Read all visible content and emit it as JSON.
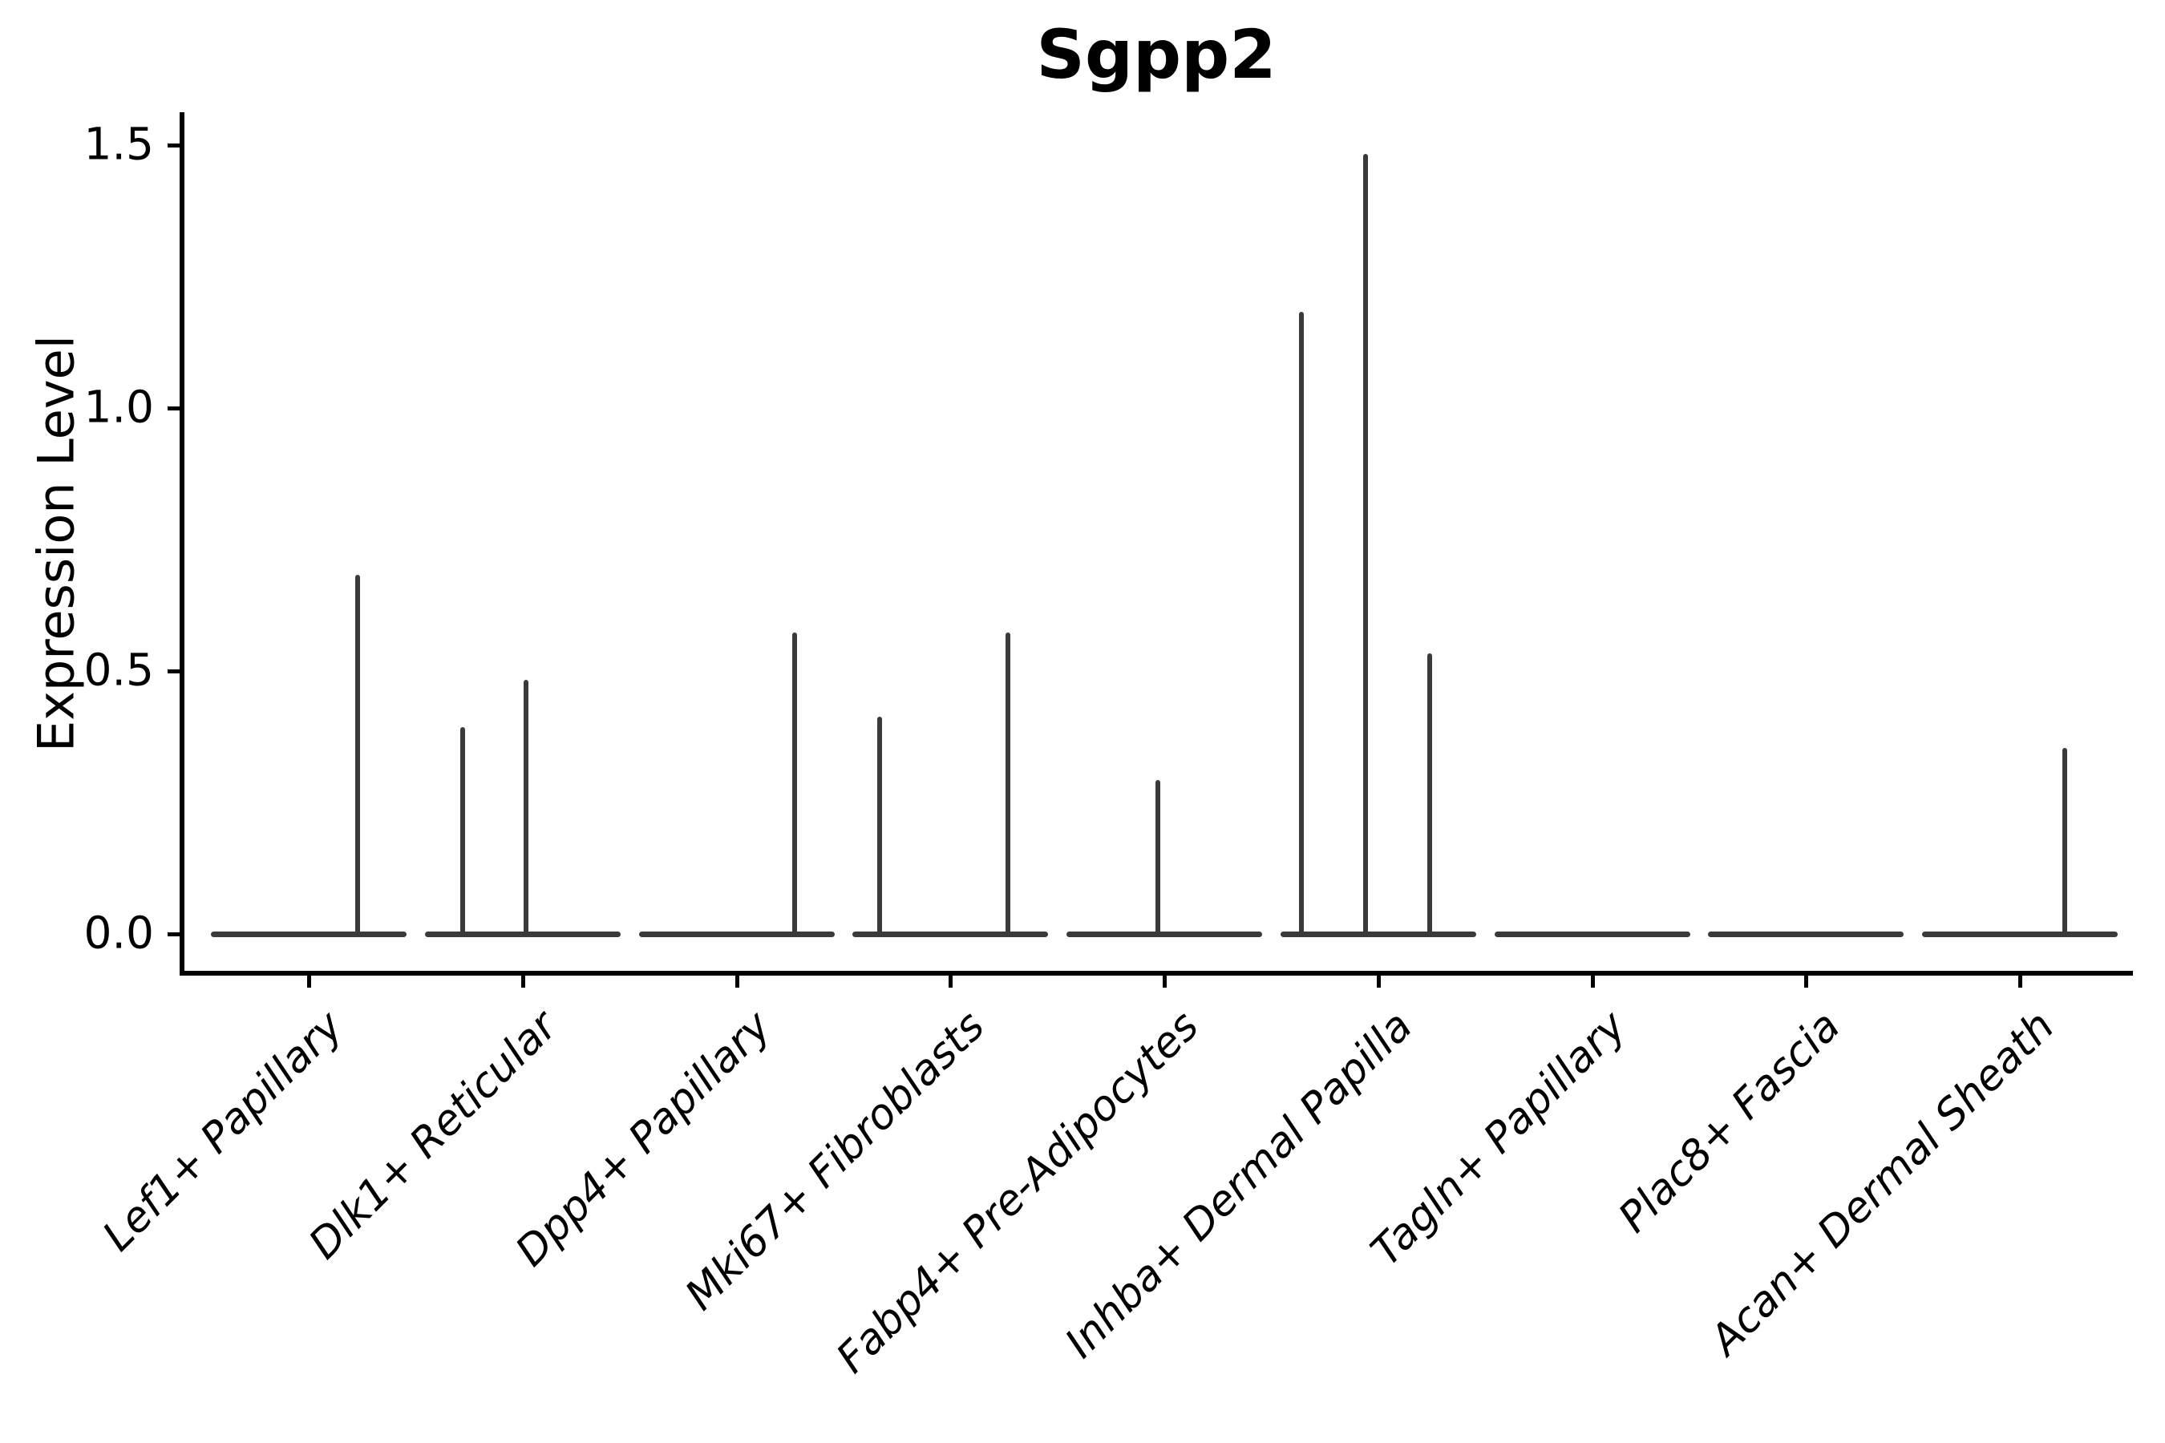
{
  "chart_data": {
    "type": "violin",
    "title": "Sgpp2",
    "ylabel": "Expression Level",
    "xlabel": "",
    "grid": false,
    "legend": false,
    "ylim": [
      -0.07,
      1.56
    ],
    "ytick_labels": [
      "0.0",
      "0.5",
      "1.0",
      "1.5"
    ],
    "ytick_values": [
      0.0,
      0.5,
      1.0,
      1.5
    ],
    "categories": [
      "Lef1+ Papillary",
      "Dlk1+ Reticular",
      "Dpp4+ Papillary",
      "Mki67+ Fibroblasts",
      "Fabp4+ Pre-Adipocytes",
      "Inhba+ Dermal Papilla",
      "Tagln+ Papillary",
      "Plac8+ Fascia",
      "Acan+ Dermal Sheath"
    ],
    "violins": [
      {
        "category": "Lef1+ Papillary",
        "baseline_value": 0.0,
        "spikes": [
          {
            "offset": 0.23,
            "value": 0.68
          }
        ]
      },
      {
        "category": "Dlk1+ Reticular",
        "baseline_value": 0.0,
        "spikes": [
          {
            "offset": -0.28,
            "value": 0.39
          },
          {
            "offset": 0.015,
            "value": 0.48
          }
        ]
      },
      {
        "category": "Dpp4+ Papillary",
        "baseline_value": 0.0,
        "spikes": [
          {
            "offset": 0.27,
            "value": 0.57
          }
        ]
      },
      {
        "category": "Mki67+ Fibroblasts",
        "baseline_value": 0.0,
        "spikes": [
          {
            "offset": -0.33,
            "value": 0.41
          },
          {
            "offset": 0.27,
            "value": 0.57
          }
        ]
      },
      {
        "category": "Fabp4+ Pre-Adipocytes",
        "baseline_value": 0.0,
        "spikes": [
          {
            "offset": -0.03,
            "value": 0.29
          }
        ]
      },
      {
        "category": "Inhba+ Dermal Papilla",
        "baseline_value": 0.0,
        "spikes": [
          {
            "offset": -0.36,
            "value": 1.18
          },
          {
            "offset": -0.06,
            "value": 1.48
          },
          {
            "offset": 0.24,
            "value": 0.53
          }
        ]
      },
      {
        "category": "Tagln+ Papillary",
        "baseline_value": 0.0,
        "spikes": []
      },
      {
        "category": "Plac8+ Fascia",
        "baseline_value": 0.0,
        "spikes": []
      },
      {
        "category": "Acan+ Dermal Sheath",
        "baseline_value": 0.0,
        "spikes": [
          {
            "offset": 0.21,
            "value": 0.35
          }
        ]
      }
    ],
    "colors": {
      "violin_line": "#3a3a3a",
      "axis": "#000000",
      "text": "#000000",
      "background": "#ffffff"
    }
  }
}
